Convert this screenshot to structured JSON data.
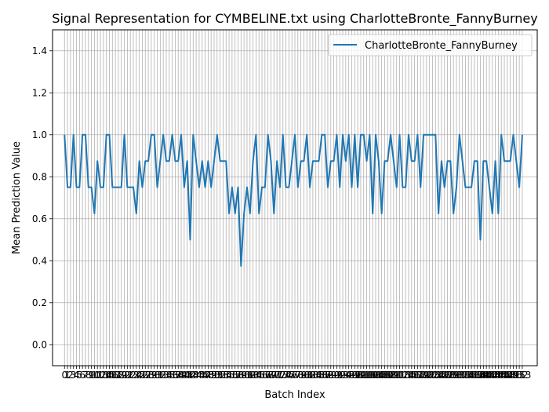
{
  "chart_data": {
    "type": "line",
    "title": "Signal Representation for CYMBELINE.txt using CharlotteBronte_FannyBurney",
    "xlabel": "Batch Index",
    "ylabel": "Mean Prediction Value",
    "xlim": [
      -4,
      158
    ],
    "ylim": [
      -0.1,
      1.5
    ],
    "y_ticks": [
      0.0,
      0.2,
      0.4,
      0.6,
      0.8,
      1.0,
      1.2,
      1.4
    ],
    "y_tick_labels": [
      "0.0",
      "0.2",
      "0.4",
      "0.6",
      "0.8",
      "1.0",
      "1.2",
      "1.4"
    ],
    "x_tick_step": 1,
    "grid": true,
    "legend": {
      "position": "top-right"
    },
    "series": [
      {
        "name": "CharlotteBronte_FannyBurney",
        "color": "#1f77b4",
        "values": [
          1.0,
          0.75,
          0.75,
          1.0,
          0.75,
          0.75,
          1.0,
          1.0,
          0.75,
          0.75,
          0.625,
          0.875,
          0.75,
          0.75,
          1.0,
          1.0,
          0.75,
          0.75,
          0.75,
          0.75,
          1.0,
          0.75,
          0.75,
          0.75,
          0.625,
          0.875,
          0.75,
          0.875,
          0.875,
          1.0,
          1.0,
          0.75,
          0.875,
          1.0,
          0.875,
          0.875,
          1.0,
          0.875,
          0.875,
          1.0,
          0.75,
          0.875,
          0.5,
          1.0,
          0.875,
          0.75,
          0.875,
          0.75,
          0.875,
          0.75,
          0.875,
          1.0,
          0.875,
          0.875,
          0.875,
          0.625,
          0.75,
          0.625,
          0.75,
          0.375,
          0.625,
          0.75,
          0.625,
          0.875,
          1.0,
          0.625,
          0.75,
          0.75,
          1.0,
          0.875,
          0.625,
          0.875,
          0.75,
          1.0,
          0.75,
          0.75,
          0.875,
          1.0,
          0.75,
          0.875,
          0.875,
          1.0,
          0.75,
          0.875,
          0.875,
          0.875,
          1.0,
          1.0,
          0.75,
          0.875,
          0.875,
          1.0,
          0.75,
          1.0,
          0.875,
          1.0,
          0.75,
          1.0,
          0.75,
          1.0,
          1.0,
          0.875,
          1.0,
          0.625,
          1.0,
          0.875,
          0.625,
          0.875,
          0.875,
          1.0,
          0.875,
          0.75,
          1.0,
          0.75,
          0.75,
          1.0,
          0.875,
          0.875,
          1.0,
          0.75,
          1.0,
          1.0,
          1.0,
          1.0,
          1.0,
          0.625,
          0.875,
          0.75,
          0.875,
          0.875,
          0.625,
          0.75,
          1.0,
          0.875,
          0.75,
          0.75,
          0.75,
          0.875,
          0.875,
          0.5,
          0.875,
          0.875,
          0.75,
          0.625,
          0.875,
          0.625,
          1.0,
          0.875,
          0.875,
          0.875,
          1.0,
          0.875,
          0.75,
          1.0
        ]
      }
    ]
  }
}
